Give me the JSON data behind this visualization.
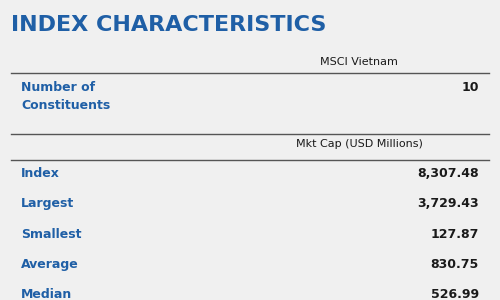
{
  "title": "INDEX CHARACTERISTICS",
  "title_color": "#1f5fa6",
  "background_color": "#f0f0f0",
  "col_header": "MSCI Vietnam",
  "subheader": "Mkt Cap (USD Millions)",
  "row1_label": "Number of\nConstituents",
  "row1_value": "10",
  "data_rows": [
    {
      "label": "Index",
      "value": "8,307.48"
    },
    {
      "label": "Largest",
      "value": "3,729.43"
    },
    {
      "label": "Smallest",
      "value": "127.87"
    },
    {
      "label": "Average",
      "value": "830.75"
    },
    {
      "label": "Median",
      "value": "526.99"
    }
  ],
  "label_color": "#1f5fa6",
  "value_color": "#1a1a1a",
  "header_color": "#1a1a1a",
  "line_color": "#555555",
  "title_fontsize": 16,
  "header_fontsize": 8,
  "row_fontsize": 9
}
